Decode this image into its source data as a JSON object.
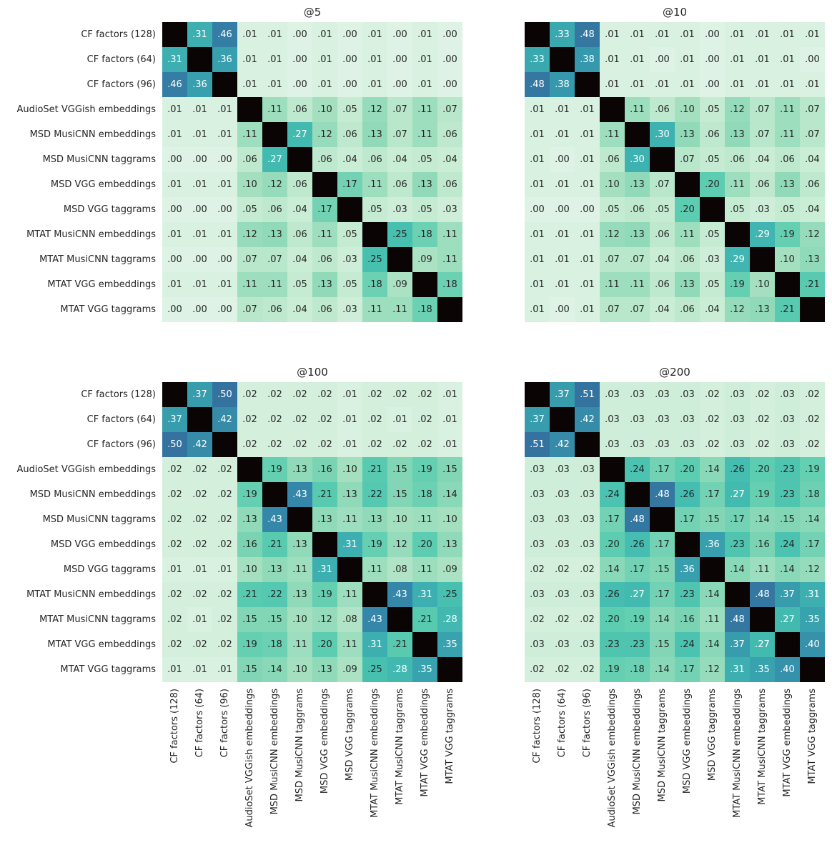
{
  "chart_data": {
    "type": "heatmap",
    "labels": [
      "CF factors (128)",
      "CF factors (64)",
      "CF factors (96)",
      "AudioSet VGGish embeddings",
      "MSD MusiCNN embeddings",
      "MSD MusiCNN taggrams",
      "MSD VGG embeddings",
      "MSD VGG taggrams",
      "MTAT MusiCNN embeddings",
      "MTAT MusiCNN taggrams",
      "MTAT VGG embeddings",
      "MTAT VGG taggrams"
    ],
    "colormap": {
      "stops": [
        "#def3e5",
        "#c5ebd2",
        "#a4e0c0",
        "#82d6b5",
        "#5ccdb0",
        "#47c0b0",
        "#3eb2b1",
        "#38a2ae",
        "#3592aa",
        "#3480a6",
        "#3472a0"
      ],
      "range": [
        0,
        0.5
      ],
      "diagonal_color": "#0b0405"
    },
    "panels": [
      {
        "title": "@5",
        "matrix": [
          [
            null,
            0.31,
            0.46,
            0.01,
            0.01,
            0.0,
            0.01,
            0.0,
            0.01,
            0.0,
            0.01,
            0.0
          ],
          [
            0.31,
            null,
            0.36,
            0.01,
            0.01,
            0.0,
            0.01,
            0.0,
            0.01,
            0.0,
            0.01,
            0.0
          ],
          [
            0.46,
            0.36,
            null,
            0.01,
            0.01,
            0.0,
            0.01,
            0.0,
            0.01,
            0.0,
            0.01,
            0.0
          ],
          [
            0.01,
            0.01,
            0.01,
            null,
            0.11,
            0.06,
            0.1,
            0.05,
            0.12,
            0.07,
            0.11,
            0.07
          ],
          [
            0.01,
            0.01,
            0.01,
            0.11,
            null,
            0.27,
            0.12,
            0.06,
            0.13,
            0.07,
            0.11,
            0.06
          ],
          [
            0.0,
            0.0,
            0.0,
            0.06,
            0.27,
            null,
            0.06,
            0.04,
            0.06,
            0.04,
            0.05,
            0.04
          ],
          [
            0.01,
            0.01,
            0.01,
            0.1,
            0.12,
            0.06,
            null,
            0.17,
            0.11,
            0.06,
            0.13,
            0.06
          ],
          [
            0.0,
            0.0,
            0.0,
            0.05,
            0.06,
            0.04,
            0.17,
            null,
            0.05,
            0.03,
            0.05,
            0.03
          ],
          [
            0.01,
            0.01,
            0.01,
            0.12,
            0.13,
            0.06,
            0.11,
            0.05,
            null,
            0.25,
            0.18,
            0.11
          ],
          [
            0.0,
            0.0,
            0.0,
            0.07,
            0.07,
            0.04,
            0.06,
            0.03,
            0.25,
            null,
            0.09,
            0.11
          ],
          [
            0.01,
            0.01,
            0.01,
            0.11,
            0.11,
            0.05,
            0.13,
            0.05,
            0.18,
            0.09,
            null,
            0.18
          ],
          [
            0.0,
            0.0,
            0.0,
            0.07,
            0.06,
            0.04,
            0.06,
            0.03,
            0.11,
            0.11,
            0.18,
            null
          ]
        ]
      },
      {
        "title": "@10",
        "matrix": [
          [
            null,
            0.33,
            0.48,
            0.01,
            0.01,
            0.01,
            0.01,
            0.0,
            0.01,
            0.01,
            0.01,
            0.01
          ],
          [
            0.33,
            null,
            0.38,
            0.01,
            0.01,
            0.0,
            0.01,
            0.0,
            0.01,
            0.01,
            0.01,
            0.0
          ],
          [
            0.48,
            0.38,
            null,
            0.01,
            0.01,
            0.01,
            0.01,
            0.0,
            0.01,
            0.01,
            0.01,
            0.01
          ],
          [
            0.01,
            0.01,
            0.01,
            null,
            0.11,
            0.06,
            0.1,
            0.05,
            0.12,
            0.07,
            0.11,
            0.07
          ],
          [
            0.01,
            0.01,
            0.01,
            0.11,
            null,
            0.3,
            0.13,
            0.06,
            0.13,
            0.07,
            0.11,
            0.07
          ],
          [
            0.01,
            0.0,
            0.01,
            0.06,
            0.3,
            null,
            0.07,
            0.05,
            0.06,
            0.04,
            0.06,
            0.04
          ],
          [
            0.01,
            0.01,
            0.01,
            0.1,
            0.13,
            0.07,
            null,
            0.2,
            0.11,
            0.06,
            0.13,
            0.06
          ],
          [
            0.0,
            0.0,
            0.0,
            0.05,
            0.06,
            0.05,
            0.2,
            null,
            0.05,
            0.03,
            0.05,
            0.04
          ],
          [
            0.01,
            0.01,
            0.01,
            0.12,
            0.13,
            0.06,
            0.11,
            0.05,
            null,
            0.29,
            0.19,
            0.12
          ],
          [
            0.01,
            0.01,
            0.01,
            0.07,
            0.07,
            0.04,
            0.06,
            0.03,
            0.29,
            null,
            0.1,
            0.13
          ],
          [
            0.01,
            0.01,
            0.01,
            0.11,
            0.11,
            0.06,
            0.13,
            0.05,
            0.19,
            0.1,
            null,
            0.21
          ],
          [
            0.01,
            0.0,
            0.01,
            0.07,
            0.07,
            0.04,
            0.06,
            0.04,
            0.12,
            0.13,
            0.21,
            null
          ]
        ]
      },
      {
        "title": "@100",
        "matrix": [
          [
            null,
            0.37,
            0.5,
            0.02,
            0.02,
            0.02,
            0.02,
            0.01,
            0.02,
            0.02,
            0.02,
            0.01
          ],
          [
            0.37,
            null,
            0.42,
            0.02,
            0.02,
            0.02,
            0.02,
            0.01,
            0.02,
            0.01,
            0.02,
            0.01
          ],
          [
            0.5,
            0.42,
            null,
            0.02,
            0.02,
            0.02,
            0.02,
            0.01,
            0.02,
            0.02,
            0.02,
            0.01
          ],
          [
            0.02,
            0.02,
            0.02,
            null,
            0.19,
            0.13,
            0.16,
            0.1,
            0.21,
            0.15,
            0.19,
            0.15
          ],
          [
            0.02,
            0.02,
            0.02,
            0.19,
            null,
            0.43,
            0.21,
            0.13,
            0.22,
            0.15,
            0.18,
            0.14
          ],
          [
            0.02,
            0.02,
            0.02,
            0.13,
            0.43,
            null,
            0.13,
            0.11,
            0.13,
            0.1,
            0.11,
            0.1
          ],
          [
            0.02,
            0.02,
            0.02,
            0.16,
            0.21,
            0.13,
            null,
            0.31,
            0.19,
            0.12,
            0.2,
            0.13
          ],
          [
            0.01,
            0.01,
            0.01,
            0.1,
            0.13,
            0.11,
            0.31,
            null,
            0.11,
            0.08,
            0.11,
            0.09
          ],
          [
            0.02,
            0.02,
            0.02,
            0.21,
            0.22,
            0.13,
            0.19,
            0.11,
            null,
            0.43,
            0.31,
            0.25
          ],
          [
            0.02,
            0.01,
            0.02,
            0.15,
            0.15,
            0.1,
            0.12,
            0.08,
            0.43,
            null,
            0.21,
            0.28
          ],
          [
            0.02,
            0.02,
            0.02,
            0.19,
            0.18,
            0.11,
            0.2,
            0.11,
            0.31,
            0.21,
            null,
            0.35
          ],
          [
            0.01,
            0.01,
            0.01,
            0.15,
            0.14,
            0.1,
            0.13,
            0.09,
            0.25,
            0.28,
            0.35,
            null
          ]
        ]
      },
      {
        "title": "@200",
        "matrix": [
          [
            null,
            0.37,
            0.51,
            0.03,
            0.03,
            0.03,
            0.03,
            0.02,
            0.03,
            0.02,
            0.03,
            0.02
          ],
          [
            0.37,
            null,
            0.42,
            0.03,
            0.03,
            0.03,
            0.03,
            0.02,
            0.03,
            0.02,
            0.03,
            0.02
          ],
          [
            0.51,
            0.42,
            null,
            0.03,
            0.03,
            0.03,
            0.03,
            0.02,
            0.03,
            0.02,
            0.03,
            0.02
          ],
          [
            0.03,
            0.03,
            0.03,
            null,
            0.24,
            0.17,
            0.2,
            0.14,
            0.26,
            0.2,
            0.23,
            0.19
          ],
          [
            0.03,
            0.03,
            0.03,
            0.24,
            null,
            0.48,
            0.26,
            0.17,
            0.27,
            0.19,
            0.23,
            0.18
          ],
          [
            0.03,
            0.03,
            0.03,
            0.17,
            0.48,
            null,
            0.17,
            0.15,
            0.17,
            0.14,
            0.15,
            0.14
          ],
          [
            0.03,
            0.03,
            0.03,
            0.2,
            0.26,
            0.17,
            null,
            0.36,
            0.23,
            0.16,
            0.24,
            0.17
          ],
          [
            0.02,
            0.02,
            0.02,
            0.14,
            0.17,
            0.15,
            0.36,
            null,
            0.14,
            0.11,
            0.14,
            0.12
          ],
          [
            0.03,
            0.03,
            0.03,
            0.26,
            0.27,
            0.17,
            0.23,
            0.14,
            null,
            0.48,
            0.37,
            0.31
          ],
          [
            0.02,
            0.02,
            0.02,
            0.2,
            0.19,
            0.14,
            0.16,
            0.11,
            0.48,
            null,
            0.27,
            0.35
          ],
          [
            0.03,
            0.03,
            0.03,
            0.23,
            0.23,
            0.15,
            0.24,
            0.14,
            0.37,
            0.27,
            null,
            0.4
          ],
          [
            0.02,
            0.02,
            0.02,
            0.19,
            0.18,
            0.14,
            0.17,
            0.12,
            0.31,
            0.35,
            0.4,
            null
          ]
        ]
      }
    ]
  }
}
